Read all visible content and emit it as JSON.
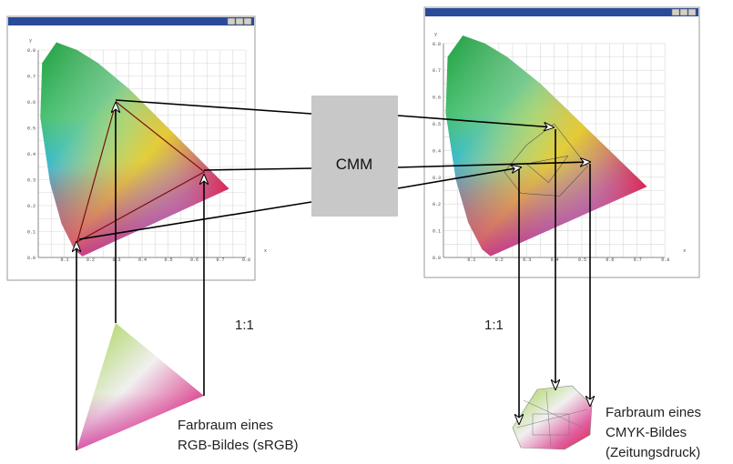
{
  "cmm": "CMM",
  "left_window": {
    "y_label": "y",
    "x_label": "x",
    "y_ticks": [
      "0.8",
      "0.7",
      "0.6",
      "0.5",
      "0.4",
      "0.3",
      "0.2",
      "0.1",
      "0.0"
    ],
    "x_ticks": [
      "0.1",
      "0.2",
      "0.3",
      "0.4",
      "0.5",
      "0.6",
      "0.7",
      "0.8"
    ]
  },
  "right_window": {
    "y_label": "y",
    "x_label": "x",
    "y_ticks": [
      "0.8",
      "0.7",
      "0.6",
      "0.5",
      "0.4",
      "0.3",
      "0.2",
      "0.1",
      "0.0"
    ],
    "x_ticks": [
      "0.1",
      "0.2",
      "0.3",
      "0.4",
      "0.5",
      "0.6",
      "0.7",
      "0.8"
    ]
  },
  "ratio_left": "1:1",
  "ratio_right": "1:1",
  "rgb_caption": [
    "Farbraum eines",
    "RGB-Bildes (sRGB)"
  ],
  "cmyk_caption": [
    "Farbraum eines",
    "CMYK-Bildes",
    "(Zeitungsdruck)"
  ]
}
